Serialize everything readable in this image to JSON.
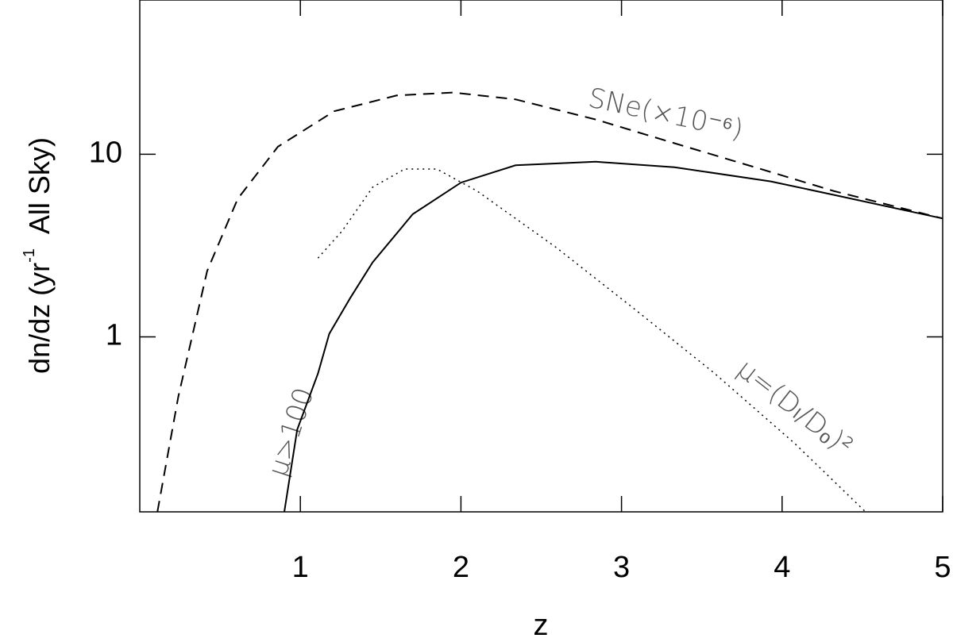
{
  "chart_data": {
    "type": "line",
    "log_y": true,
    "x_label": "z",
    "y_label": {
      "main": "dn/dz (yr",
      "sup": "-1",
      "end": "  All Sky)"
    },
    "xlim": [
      0,
      5
    ],
    "xticks": [
      1,
      2,
      3,
      4,
      5
    ],
    "ylim": [
      0.11,
      70
    ],
    "yticks": [
      1,
      10
    ],
    "annotations": [
      "SNe(×10⁻⁶)",
      "μ>100",
      "μ=(Dₗ/Dₒ)²"
    ],
    "series": [
      {
        "color": "#000000",
        "style": "dashed",
        "x": [
          0.11,
          0.24,
          0.42,
          0.61,
          0.86,
          1.21,
          1.6,
          1.95,
          2.34,
          2.84,
          3.33,
          3.83,
          4.32,
          5.0
        ],
        "values": [
          0.11,
          0.47,
          2.3,
          5.7,
          11,
          17.2,
          21,
          21.8,
          20,
          15.5,
          11.5,
          8.5,
          6.3,
          4.45
        ]
      },
      {
        "color": "#000000",
        "style": "solid",
        "x": [
          0.9,
          0.98,
          1.11,
          1.18,
          1.31,
          1.45,
          1.7,
          2.0,
          2.34,
          2.84,
          3.33,
          3.93,
          4.32,
          5.0
        ],
        "values": [
          0.11,
          0.31,
          0.63,
          1.04,
          1.63,
          2.56,
          4.7,
          7.0,
          8.7,
          9.1,
          8.5,
          7.1,
          6.0,
          4.45
        ]
      },
      {
        "color": "#000000",
        "style": "dotted",
        "x": [
          1.11,
          1.26,
          1.45,
          1.65,
          1.85,
          2.1,
          2.59,
          3.09,
          3.58,
          4.08,
          4.52
        ],
        "values": [
          2.7,
          3.8,
          6.6,
          8.3,
          8.3,
          6.3,
          3.1,
          1.4,
          0.63,
          0.26,
          0.11
        ]
      }
    ]
  }
}
